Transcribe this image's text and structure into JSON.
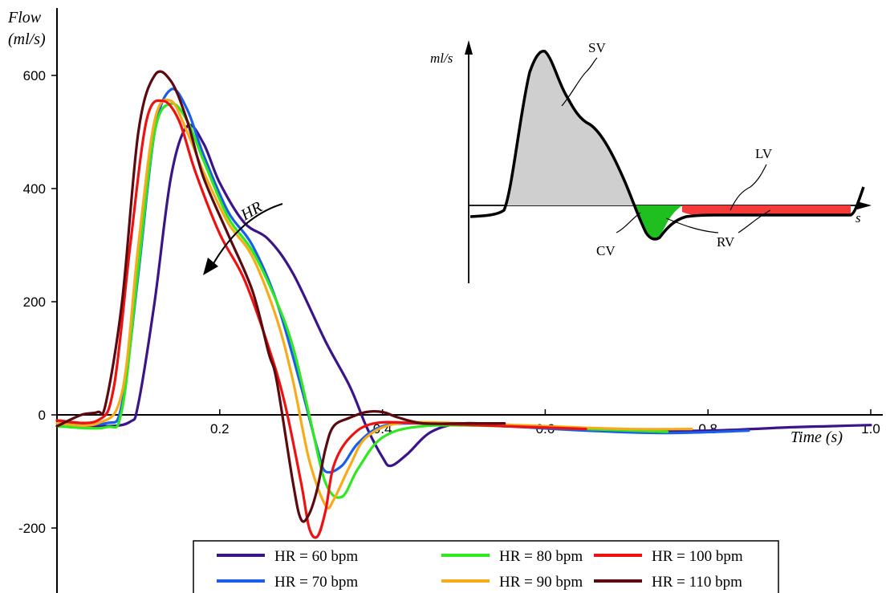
{
  "chart_data": {
    "type": "line",
    "ylabel_line1": "Flow",
    "ylabel_line2": "(ml/s)",
    "xlabel": "Time (s)",
    "xlim": [
      0.0,
      1.0
    ],
    "ylim": [
      -300,
      680
    ],
    "x_ticks": [
      {
        "value": 0.2,
        "label": "0.2"
      },
      {
        "value": 0.4,
        "label": "0.4"
      },
      {
        "value": 0.6,
        "label": "0.6"
      },
      {
        "value": 0.8,
        "label": "0.8"
      },
      {
        "value": 1.0,
        "label": "1.0"
      }
    ],
    "y_ticks": [
      {
        "value": 600,
        "label": "600"
      },
      {
        "value": 400,
        "label": "400"
      },
      {
        "value": 200,
        "label": "200"
      },
      {
        "value": 0,
        "label": "0"
      },
      {
        "value": -200,
        "label": "-200"
      }
    ],
    "arrow_label": "HR",
    "legend_position": "bottom-center",
    "series": [
      {
        "name": "HR = 60 bpm",
        "color": "#3c1489",
        "x": [
          0.0,
          0.06,
          0.09,
          0.1,
          0.12,
          0.14,
          0.16,
          0.18,
          0.2,
          0.23,
          0.26,
          0.29,
          0.33,
          0.36,
          0.38,
          0.4,
          0.41,
          0.43,
          0.46,
          0.5,
          0.56,
          0.62,
          0.7,
          0.8,
          0.9,
          0.95,
          1.0
        ],
        "y": [
          -15,
          -20,
          -12,
          20,
          200,
          420,
          510,
          480,
          410,
          340,
          310,
          250,
          130,
          50,
          -20,
          -75,
          -90,
          -70,
          -30,
          -15,
          -20,
          -25,
          -28,
          -28,
          -22,
          -20,
          -18
        ]
      },
      {
        "name": "HR = 70 bpm",
        "color": "#1a5eea",
        "x": [
          0.0,
          0.06,
          0.08,
          0.1,
          0.12,
          0.14,
          0.16,
          0.18,
          0.21,
          0.24,
          0.27,
          0.3,
          0.32,
          0.33,
          0.35,
          0.37,
          0.4,
          0.45,
          0.55,
          0.65,
          0.75,
          0.85
        ],
        "y": [
          -10,
          -15,
          20,
          250,
          500,
          575,
          540,
          460,
          360,
          300,
          200,
          50,
          -60,
          -100,
          -90,
          -50,
          -20,
          -15,
          -20,
          -28,
          -32,
          -28
        ]
      },
      {
        "name": "HR = 80 bpm",
        "color": "#2ee820",
        "x": [
          0.0,
          0.06,
          0.08,
          0.1,
          0.12,
          0.14,
          0.16,
          0.18,
          0.21,
          0.24,
          0.27,
          0.29,
          0.31,
          0.33,
          0.35,
          0.37,
          0.4,
          0.45,
          0.55,
          0.65,
          0.75
        ],
        "y": [
          -20,
          -22,
          10,
          260,
          500,
          550,
          520,
          450,
          350,
          290,
          200,
          120,
          0,
          -120,
          -145,
          -95,
          -40,
          -20,
          -20,
          -25,
          -30
        ]
      },
      {
        "name": "HR = 90 bpm",
        "color": "#f7ab1b",
        "x": [
          0.0,
          0.05,
          0.08,
          0.1,
          0.12,
          0.14,
          0.16,
          0.18,
          0.21,
          0.24,
          0.27,
          0.29,
          0.31,
          0.33,
          0.34,
          0.36,
          0.38,
          0.42,
          0.5,
          0.6,
          0.7,
          0.78
        ],
        "y": [
          -15,
          -15,
          40,
          300,
          520,
          555,
          500,
          430,
          340,
          280,
          170,
          60,
          -80,
          -160,
          -150,
          -90,
          -40,
          -15,
          -15,
          -20,
          -25,
          -25
        ]
      },
      {
        "name": "HR = 100 bpm",
        "color": "#ee1111",
        "x": [
          0.0,
          0.05,
          0.07,
          0.09,
          0.11,
          0.13,
          0.15,
          0.17,
          0.2,
          0.23,
          0.26,
          0.28,
          0.3,
          0.31,
          0.32,
          0.33,
          0.34,
          0.36,
          0.39,
          0.45,
          0.55,
          0.65
        ],
        "y": [
          -10,
          -10,
          50,
          300,
          520,
          555,
          520,
          430,
          320,
          240,
          120,
          20,
          -120,
          -200,
          -215,
          -170,
          -90,
          -40,
          -15,
          -15,
          -20,
          -25
        ]
      },
      {
        "name": "HR = 110 bpm",
        "color": "#5a0a10",
        "x": [
          0.0,
          0.03,
          0.05,
          0.06,
          0.08,
          0.1,
          0.12,
          0.14,
          0.16,
          0.18,
          0.21,
          0.24,
          0.26,
          0.27,
          0.29,
          0.3,
          0.31,
          0.32,
          0.33,
          0.34,
          0.36,
          0.38,
          0.4,
          0.42,
          0.45,
          0.5,
          0.55
        ],
        "y": [
          -20,
          0,
          5,
          20,
          200,
          500,
          600,
          590,
          520,
          420,
          320,
          220,
          110,
          60,
          -120,
          -185,
          -175,
          -130,
          -60,
          -20,
          -5,
          5,
          5,
          -5,
          -15,
          -15,
          -15
        ]
      }
    ],
    "inset": {
      "y_label": "ml/s",
      "x_label": "s",
      "labels": {
        "sv": "SV",
        "lv": "LV",
        "cv": "CV",
        "rv": "RV"
      },
      "colors": {
        "sv_fill": "#cfcfcf",
        "cv_fill": "#1fbf1f",
        "lv_fill": "#f53a3a"
      }
    }
  }
}
